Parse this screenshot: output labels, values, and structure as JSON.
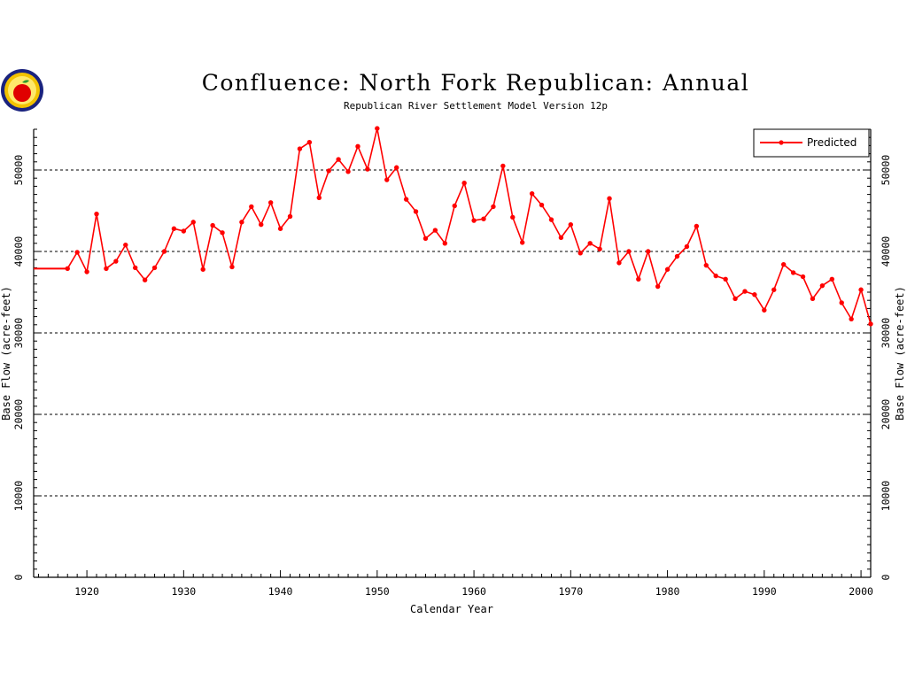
{
  "page": {
    "title": "Confluence: North Fork Republican: Annual",
    "subtitle": "Republican River Settlement Model Version 12p",
    "logo": "apple-logo-icon"
  },
  "chart_data": {
    "type": "line",
    "xlabel": "Calendar Year",
    "ylabel": "Base Flow (acre-feet)",
    "xlim": [
      1914.5,
      2001
    ],
    "ylim": [
      0,
      55000
    ],
    "xticks": [
      1920,
      1930,
      1940,
      1950,
      1960,
      1970,
      1980,
      1990,
      2000
    ],
    "yticks": [
      0,
      10000,
      20000,
      30000,
      40000,
      50000
    ],
    "y_tick_labels_both_sides": true,
    "grid": "horizontal dashed at 10000-unit ticks",
    "legend": {
      "position": "top-right"
    },
    "colors": {
      "series": "#ff0000",
      "grid": "#000000",
      "axes": "#000000"
    },
    "series": [
      {
        "name": "Predicted",
        "x": [
          1918,
          1919,
          1920,
          1921,
          1922,
          1923,
          1924,
          1925,
          1926,
          1927,
          1928,
          1929,
          1930,
          1931,
          1932,
          1933,
          1934,
          1935,
          1936,
          1937,
          1938,
          1939,
          1940,
          1941,
          1942,
          1943,
          1944,
          1945,
          1946,
          1947,
          1948,
          1949,
          1950,
          1951,
          1952,
          1953,
          1954,
          1955,
          1956,
          1957,
          1958,
          1959,
          1960,
          1961,
          1962,
          1963,
          1964,
          1965,
          1966,
          1967,
          1968,
          1969,
          1970,
          1971,
          1972,
          1973,
          1974,
          1975,
          1976,
          1977,
          1978,
          1979,
          1980,
          1981,
          1982,
          1983,
          1984,
          1985,
          1986,
          1987,
          1988,
          1989,
          1990,
          1991,
          1992,
          1993,
          1994,
          1995,
          1996,
          1997,
          1998,
          1999,
          2000,
          2001
        ],
        "y": [
          37900,
          39900,
          37500,
          44600,
          37900,
          38800,
          40800,
          38000,
          36500,
          38000,
          40000,
          42800,
          42500,
          43600,
          37800,
          43200,
          42300,
          38100,
          43600,
          45500,
          43300,
          46000,
          42800,
          44300,
          52600,
          53400,
          46600,
          49900,
          51300,
          49800,
          52900,
          50100,
          55100,
          48800,
          50300,
          46400,
          44900,
          41600,
          42600,
          41000,
          45600,
          48400,
          43800,
          44000,
          45500,
          50500,
          44200,
          41100,
          47100,
          45700,
          43900,
          41700,
          43300,
          39800,
          41000,
          40300,
          46500,
          38600,
          40000,
          36600,
          40000,
          35700,
          37800,
          39400,
          40600,
          43100,
          38300,
          37000,
          36600,
          34200,
          35100,
          34700,
          32800,
          35300,
          38400,
          37400,
          36900,
          34200,
          35800,
          36600,
          33700,
          31700,
          35300,
          31100
        ],
        "flat_segment_before_first_point": {
          "x": [
            1914.5,
            1918
          ],
          "y": 37900
        }
      }
    ]
  }
}
